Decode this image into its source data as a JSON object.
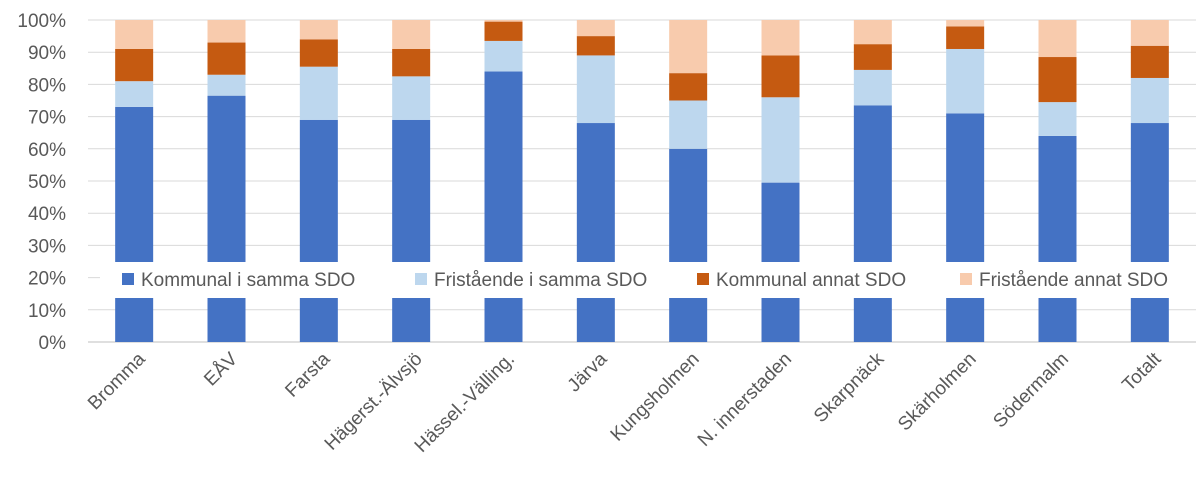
{
  "chart_data": {
    "type": "bar",
    "stacked": true,
    "percent_stacked": true,
    "categories": [
      "Bromma",
      "EÅV",
      "Farsta",
      "Hägerst.-Älvsjö",
      "Hässel.-Välling.",
      "Järva",
      "Kungsholmen",
      "N. innerstaden",
      "Skarpnäck",
      "Skärholmen",
      "Södermalm",
      "Totalt"
    ],
    "series": [
      {
        "name": "Kommunal i samma SDO",
        "color": "#4472C4",
        "values": [
          73,
          76.5,
          69,
          69,
          84,
          68,
          60,
          49.5,
          73.5,
          71,
          64,
          68
        ]
      },
      {
        "name": "Fristående i samma SDO",
        "color": "#BDD7EE",
        "values": [
          8,
          6.5,
          16.5,
          13.5,
          9.5,
          21,
          15,
          26.5,
          11,
          20,
          10.5,
          14
        ]
      },
      {
        "name": "Kommunal annat SDO",
        "color": "#C55A11",
        "values": [
          10,
          10,
          8.5,
          8.5,
          6,
          6,
          8.5,
          13,
          8,
          7,
          14,
          10
        ]
      },
      {
        "name": "Fristående annat SDO",
        "color": "#F8CBAD",
        "values": [
          9,
          7,
          6,
          9,
          0.5,
          5,
          16.5,
          11,
          7.5,
          2,
          11.5,
          8
        ]
      }
    ],
    "y_ticks": [
      "0%",
      "10%",
      "20%",
      "30%",
      "40%",
      "50%",
      "60%",
      "70%",
      "80%",
      "90%",
      "100%"
    ],
    "ylim": [
      0,
      100
    ],
    "grid": true,
    "legend_position": "inside-middle"
  }
}
